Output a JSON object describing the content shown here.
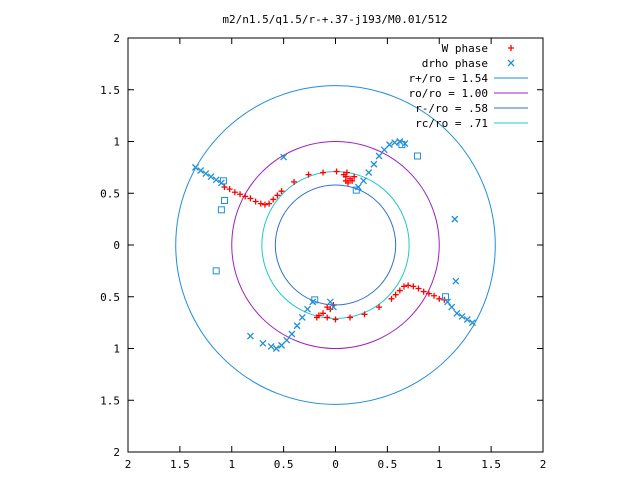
{
  "chart_data": {
    "type": "scatter",
    "title": "m2/n1.5/q1.5/r-+.37-j193/M0.01/512",
    "xlabel": "",
    "ylabel": "",
    "xlim": [
      -2,
      2
    ],
    "ylim": [
      -2,
      2
    ],
    "grid": false,
    "legend_position": "top-right",
    "x_ticks": [
      -2,
      -1.5,
      -1,
      -0.5,
      0,
      0.5,
      1,
      1.5,
      2
    ],
    "x_tick_labels": [
      "2",
      "1.5",
      "1",
      "0.5",
      "0",
      "0.5",
      "1",
      "1.5",
      "2"
    ],
    "y_ticks": [
      2,
      1.5,
      1,
      0.5,
      0,
      -0.5,
      -1,
      -1.5,
      -2
    ],
    "y_tick_labels": [
      "2",
      "1.5",
      "1",
      "0.5",
      "0",
      "0.5",
      "1",
      "1.5",
      "2"
    ],
    "circles": [
      {
        "name": "r+/ro = 1.54",
        "radius": 1.54,
        "color": "#1f8fd8"
      },
      {
        "name": "ro/ro = 1.00",
        "radius": 1.0,
        "color": "#a020c0"
      },
      {
        "name": "r-/ro = .58",
        "radius": 0.58,
        "color": "#2f6fd0"
      },
      {
        "name": "rc/ro = .71",
        "radius": 0.71,
        "color": "#20c8c8"
      }
    ],
    "series": [
      {
        "name": "W phase",
        "marker": "plus",
        "color": "#ff0000",
        "points": [
          [
            -1.07,
            0.56
          ],
          [
            -1.02,
            0.54
          ],
          [
            -0.97,
            0.51
          ],
          [
            -0.92,
            0.49
          ],
          [
            -0.87,
            0.47
          ],
          [
            -0.82,
            0.45
          ],
          [
            -0.77,
            0.42
          ],
          [
            -0.72,
            0.4
          ],
          [
            -0.68,
            0.39
          ],
          [
            -0.64,
            0.4
          ],
          [
            -0.6,
            0.44
          ],
          [
            -0.56,
            0.48
          ],
          [
            -0.52,
            0.52
          ],
          [
            -0.4,
            0.61
          ],
          [
            -0.26,
            0.68
          ],
          [
            -0.12,
            0.7
          ],
          [
            0.01,
            0.71
          ],
          [
            0.08,
            0.68
          ],
          [
            0.1,
            0.66
          ],
          [
            0.1,
            0.62
          ],
          [
            0.12,
            0.6
          ],
          [
            0.14,
            0.64
          ],
          [
            0.16,
            0.62
          ],
          [
            0.11,
            0.7
          ],
          [
            0.18,
            0.66
          ],
          [
            1.05,
            -0.53
          ],
          [
            1.0,
            -0.52
          ],
          [
            0.95,
            -0.49
          ],
          [
            0.9,
            -0.47
          ],
          [
            0.85,
            -0.45
          ],
          [
            0.8,
            -0.42
          ],
          [
            0.75,
            -0.4
          ],
          [
            0.7,
            -0.39
          ],
          [
            0.66,
            -0.4
          ],
          [
            0.62,
            -0.44
          ],
          [
            0.58,
            -0.48
          ],
          [
            0.54,
            -0.52
          ],
          [
            0.42,
            -0.6
          ],
          [
            0.28,
            -0.67
          ],
          [
            0.14,
            -0.7
          ],
          [
            0.0,
            -0.72
          ],
          [
            -0.08,
            -0.7
          ],
          [
            -0.16,
            -0.68
          ],
          [
            -0.08,
            -0.6
          ],
          [
            -0.05,
            -0.62
          ],
          [
            -0.12,
            -0.66
          ],
          [
            -0.18,
            -0.7
          ],
          [
            -0.02,
            -0.58
          ]
        ]
      },
      {
        "name": "drho phase",
        "marker": "cross",
        "color": "#1f8fd8",
        "points": [
          [
            -1.35,
            0.75
          ],
          [
            -1.3,
            0.72
          ],
          [
            -1.25,
            0.69
          ],
          [
            -1.2,
            0.66
          ],
          [
            -1.15,
            0.63
          ],
          [
            -1.1,
            0.6
          ],
          [
            -0.5,
            0.85
          ],
          [
            0.22,
            0.56
          ],
          [
            0.27,
            0.62
          ],
          [
            0.32,
            0.7
          ],
          [
            0.37,
            0.78
          ],
          [
            0.42,
            0.86
          ],
          [
            0.47,
            0.92
          ],
          [
            0.52,
            0.97
          ],
          [
            0.57,
            0.99
          ],
          [
            0.62,
            1.0
          ],
          [
            0.67,
            0.98
          ],
          [
            1.32,
            -0.75
          ],
          [
            1.27,
            -0.72
          ],
          [
            1.22,
            -0.69
          ],
          [
            1.17,
            -0.66
          ],
          [
            1.12,
            -0.6
          ],
          [
            1.08,
            -0.55
          ],
          [
            -0.22,
            -0.55
          ],
          [
            -0.27,
            -0.62
          ],
          [
            -0.32,
            -0.7
          ],
          [
            -0.37,
            -0.78
          ],
          [
            -0.42,
            -0.86
          ],
          [
            -0.47,
            -0.92
          ],
          [
            -0.52,
            -0.97
          ],
          [
            -0.57,
            -1.0
          ],
          [
            -0.62,
            -0.98
          ],
          [
            -0.82,
            -0.88
          ],
          [
            -0.7,
            -0.95
          ],
          [
            1.16,
            -0.35
          ],
          [
            1.15,
            0.25
          ],
          [
            -0.05,
            -0.55
          ],
          [
            -0.02,
            -0.6
          ]
        ]
      },
      {
        "name": "",
        "marker": "square",
        "color": "#1f8fd8",
        "points": [
          [
            -1.1,
            0.34
          ],
          [
            -1.07,
            0.43
          ],
          [
            -1.15,
            -0.25
          ],
          [
            0.64,
            0.97
          ],
          [
            0.79,
            0.86
          ],
          [
            0.2,
            0.53
          ],
          [
            -0.2,
            -0.53
          ],
          [
            1.06,
            -0.5
          ],
          [
            -1.08,
            0.62
          ]
        ]
      }
    ],
    "legend": [
      {
        "label": "W phase",
        "kind": "marker",
        "marker": "plus",
        "color": "#ff0000"
      },
      {
        "label": "drho phase",
        "kind": "marker",
        "marker": "cross",
        "color": "#1f8fd8"
      },
      {
        "label": "r+/ro = 1.54",
        "kind": "line",
        "color": "#1f8fd8"
      },
      {
        "label": "ro/ro = 1.00",
        "kind": "line",
        "color": "#a020c0"
      },
      {
        "label": "r-/ro = .58",
        "kind": "line",
        "color": "#2f6fd0"
      },
      {
        "label": "rc/ro = .71",
        "kind": "line",
        "color": "#20c8c8"
      }
    ]
  }
}
